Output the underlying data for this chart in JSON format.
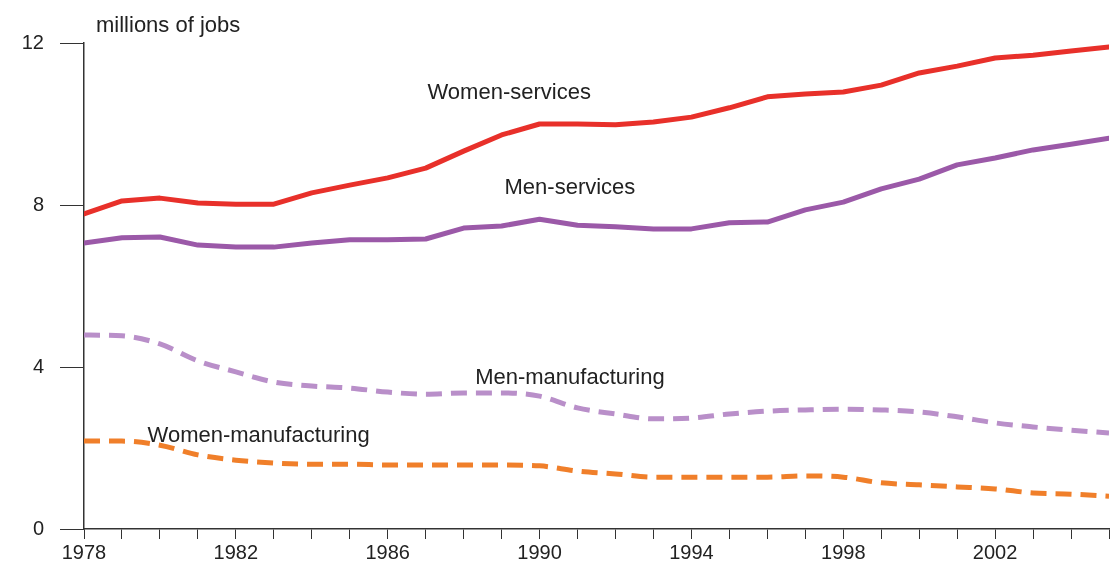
{
  "chart_data": {
    "type": "line",
    "ylabel": "millions of jobs",
    "x": [
      1978,
      1979,
      1980,
      1981,
      1982,
      1983,
      1984,
      1985,
      1986,
      1987,
      1988,
      1989,
      1990,
      1991,
      1992,
      1993,
      1994,
      1995,
      1996,
      1997,
      1998,
      1999,
      2000,
      2001,
      2002,
      2003,
      2004,
      2005
    ],
    "series": [
      {
        "name": "Women-services",
        "color": "#e8302a",
        "line_style": "solid",
        "values": [
          7.78,
          8.1,
          8.17,
          8.05,
          8.02,
          8.02,
          8.3,
          8.49,
          8.67,
          8.91,
          9.33,
          9.73,
          10.0,
          10.0,
          9.98,
          10.05,
          10.17,
          10.4,
          10.67,
          10.74,
          10.79,
          10.96,
          11.26,
          11.43,
          11.63,
          11.7,
          11.8,
          11.9
        ]
      },
      {
        "name": "Men-services",
        "color": "#9b59a8",
        "line_style": "solid",
        "values": [
          7.06,
          7.19,
          7.21,
          7.01,
          6.96,
          6.96,
          7.06,
          7.14,
          7.14,
          7.16,
          7.43,
          7.48,
          7.65,
          7.5,
          7.46,
          7.41,
          7.41,
          7.56,
          7.58,
          7.88,
          8.07,
          8.4,
          8.64,
          8.99,
          9.16,
          9.36,
          9.5,
          9.65
        ]
      },
      {
        "name": "Men-manufacturing",
        "color": "#b98fc9",
        "line_style": "dashed",
        "values": [
          4.79,
          4.77,
          4.57,
          4.15,
          3.88,
          3.63,
          3.53,
          3.48,
          3.38,
          3.33,
          3.36,
          3.36,
          3.28,
          2.99,
          2.84,
          2.72,
          2.74,
          2.84,
          2.91,
          2.94,
          2.96,
          2.94,
          2.89,
          2.77,
          2.62,
          2.52,
          2.44,
          2.37
        ]
      },
      {
        "name": "Women-manufacturing",
        "color": "#f07f2a",
        "line_style": "dashed",
        "values": [
          2.17,
          2.17,
          2.07,
          1.83,
          1.7,
          1.63,
          1.6,
          1.6,
          1.58,
          1.58,
          1.58,
          1.58,
          1.56,
          1.43,
          1.36,
          1.28,
          1.28,
          1.28,
          1.28,
          1.31,
          1.28,
          1.14,
          1.09,
          1.04,
          0.99,
          0.89,
          0.86,
          0.81
        ]
      }
    ],
    "xlim": [
      1978,
      2005
    ],
    "xticks": [
      1978,
      {
        "value": 1979,
        "label": null
      },
      {
        "value": 1980,
        "label": null
      },
      {
        "value": 1981,
        "label": null
      },
      1982,
      {
        "value": 1983,
        "label": null
      },
      {
        "value": 1984,
        "label": null
      },
      {
        "value": 1985,
        "label": null
      },
      1986,
      {
        "value": 1987,
        "label": null
      },
      {
        "value": 1988,
        "label": null
      },
      {
        "value": 1989,
        "label": null
      },
      1990,
      {
        "value": 1991,
        "label": null
      },
      {
        "value": 1992,
        "label": null
      },
      {
        "value": 1993,
        "label": null
      },
      1994,
      {
        "value": 1995,
        "label": null
      },
      {
        "value": 1996,
        "label": null
      },
      {
        "value": 1997,
        "label": null
      },
      1998,
      {
        "value": 1999,
        "label": null
      },
      {
        "value": 2000,
        "label": null
      },
      {
        "value": 2001,
        "label": null
      },
      2002,
      {
        "value": 2003,
        "label": null
      },
      {
        "value": 2004,
        "label": null
      },
      {
        "value": 2005,
        "label": null
      }
    ],
    "ylim": [
      0,
      12
    ],
    "yticks": [
      0,
      4,
      8,
      12
    ],
    "grid": false,
    "legend": false,
    "marker": "none"
  }
}
